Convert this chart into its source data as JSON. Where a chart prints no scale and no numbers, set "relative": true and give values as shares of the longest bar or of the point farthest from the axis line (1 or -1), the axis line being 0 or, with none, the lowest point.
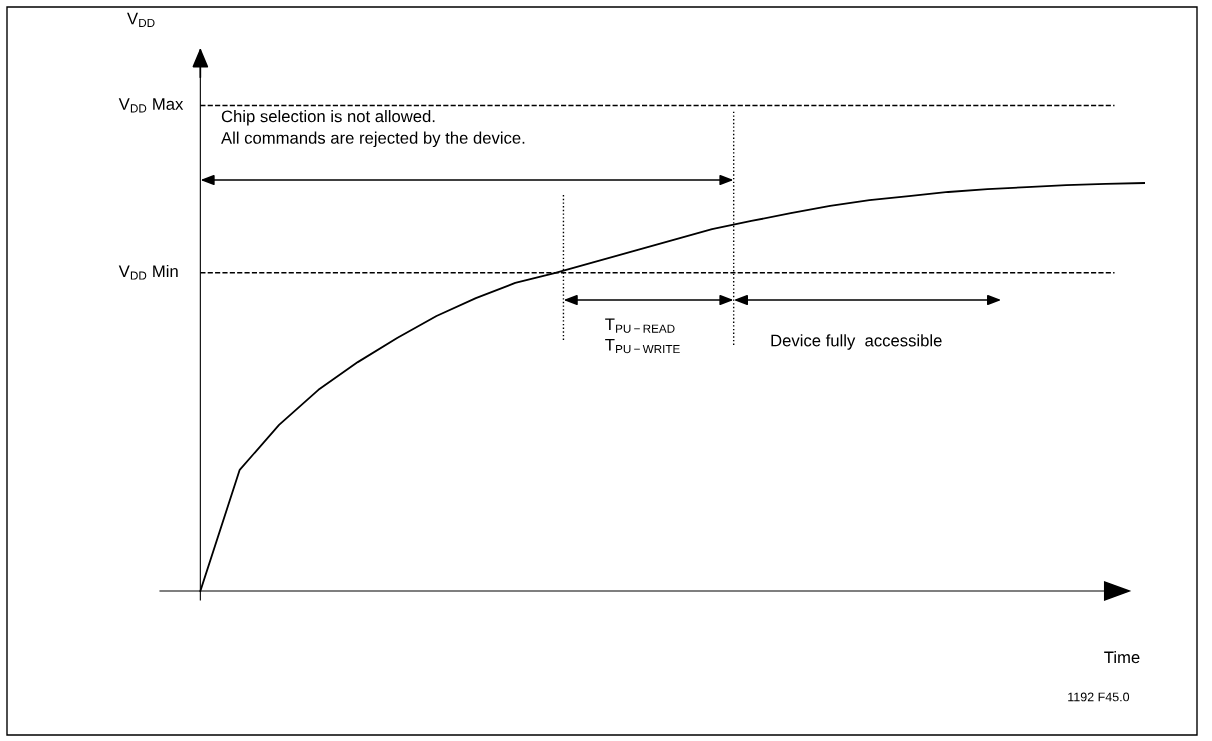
{
  "chart_data": {
    "type": "line",
    "relative": true,
    "xlabel": "Time",
    "line_style": "solid",
    "categories": [
      null,
      null,
      null,
      null,
      null,
      null,
      null,
      null,
      null,
      null,
      null,
      null,
      null,
      null,
      null,
      null,
      null,
      null,
      null,
      null,
      null,
      null,
      null,
      null,
      null
    ],
    "series": [
      {
        "color": "#000000",
        "values": [
          0,
          0.297,
          0.407,
          0.493,
          0.561,
          0.62,
          0.674,
          0.718,
          0.755,
          0.779,
          0.806,
          0.833,
          0.86,
          0.887,
          0.907,
          0.926,
          0.944,
          0.958,
          0.968,
          0.978,
          0.985,
          0.99,
          0.995,
          0.998,
          1
        ]
      }
    ],
    "ref_lines": [
      {
        "axis": "y",
        "value": 1.19,
        "label": "V$_{DD}$ Max",
        "line_style": "dashed",
        "color": "#000000"
      },
      {
        "axis": "y",
        "value": 0.78,
        "label": "V$_{DD}$ Min",
        "line_style": "dashed",
        "color": "#000000"
      }
    ],
    "annotations": [
      "V$_{DD}$",
      "Chip selection is not allowed.\nAll commands are rejected by the device.",
      "T$_{PU−READ}$\nT$_{PU−WRITE}$",
      "Device fully  accessible",
      "1192 F45.0"
    ]
  }
}
